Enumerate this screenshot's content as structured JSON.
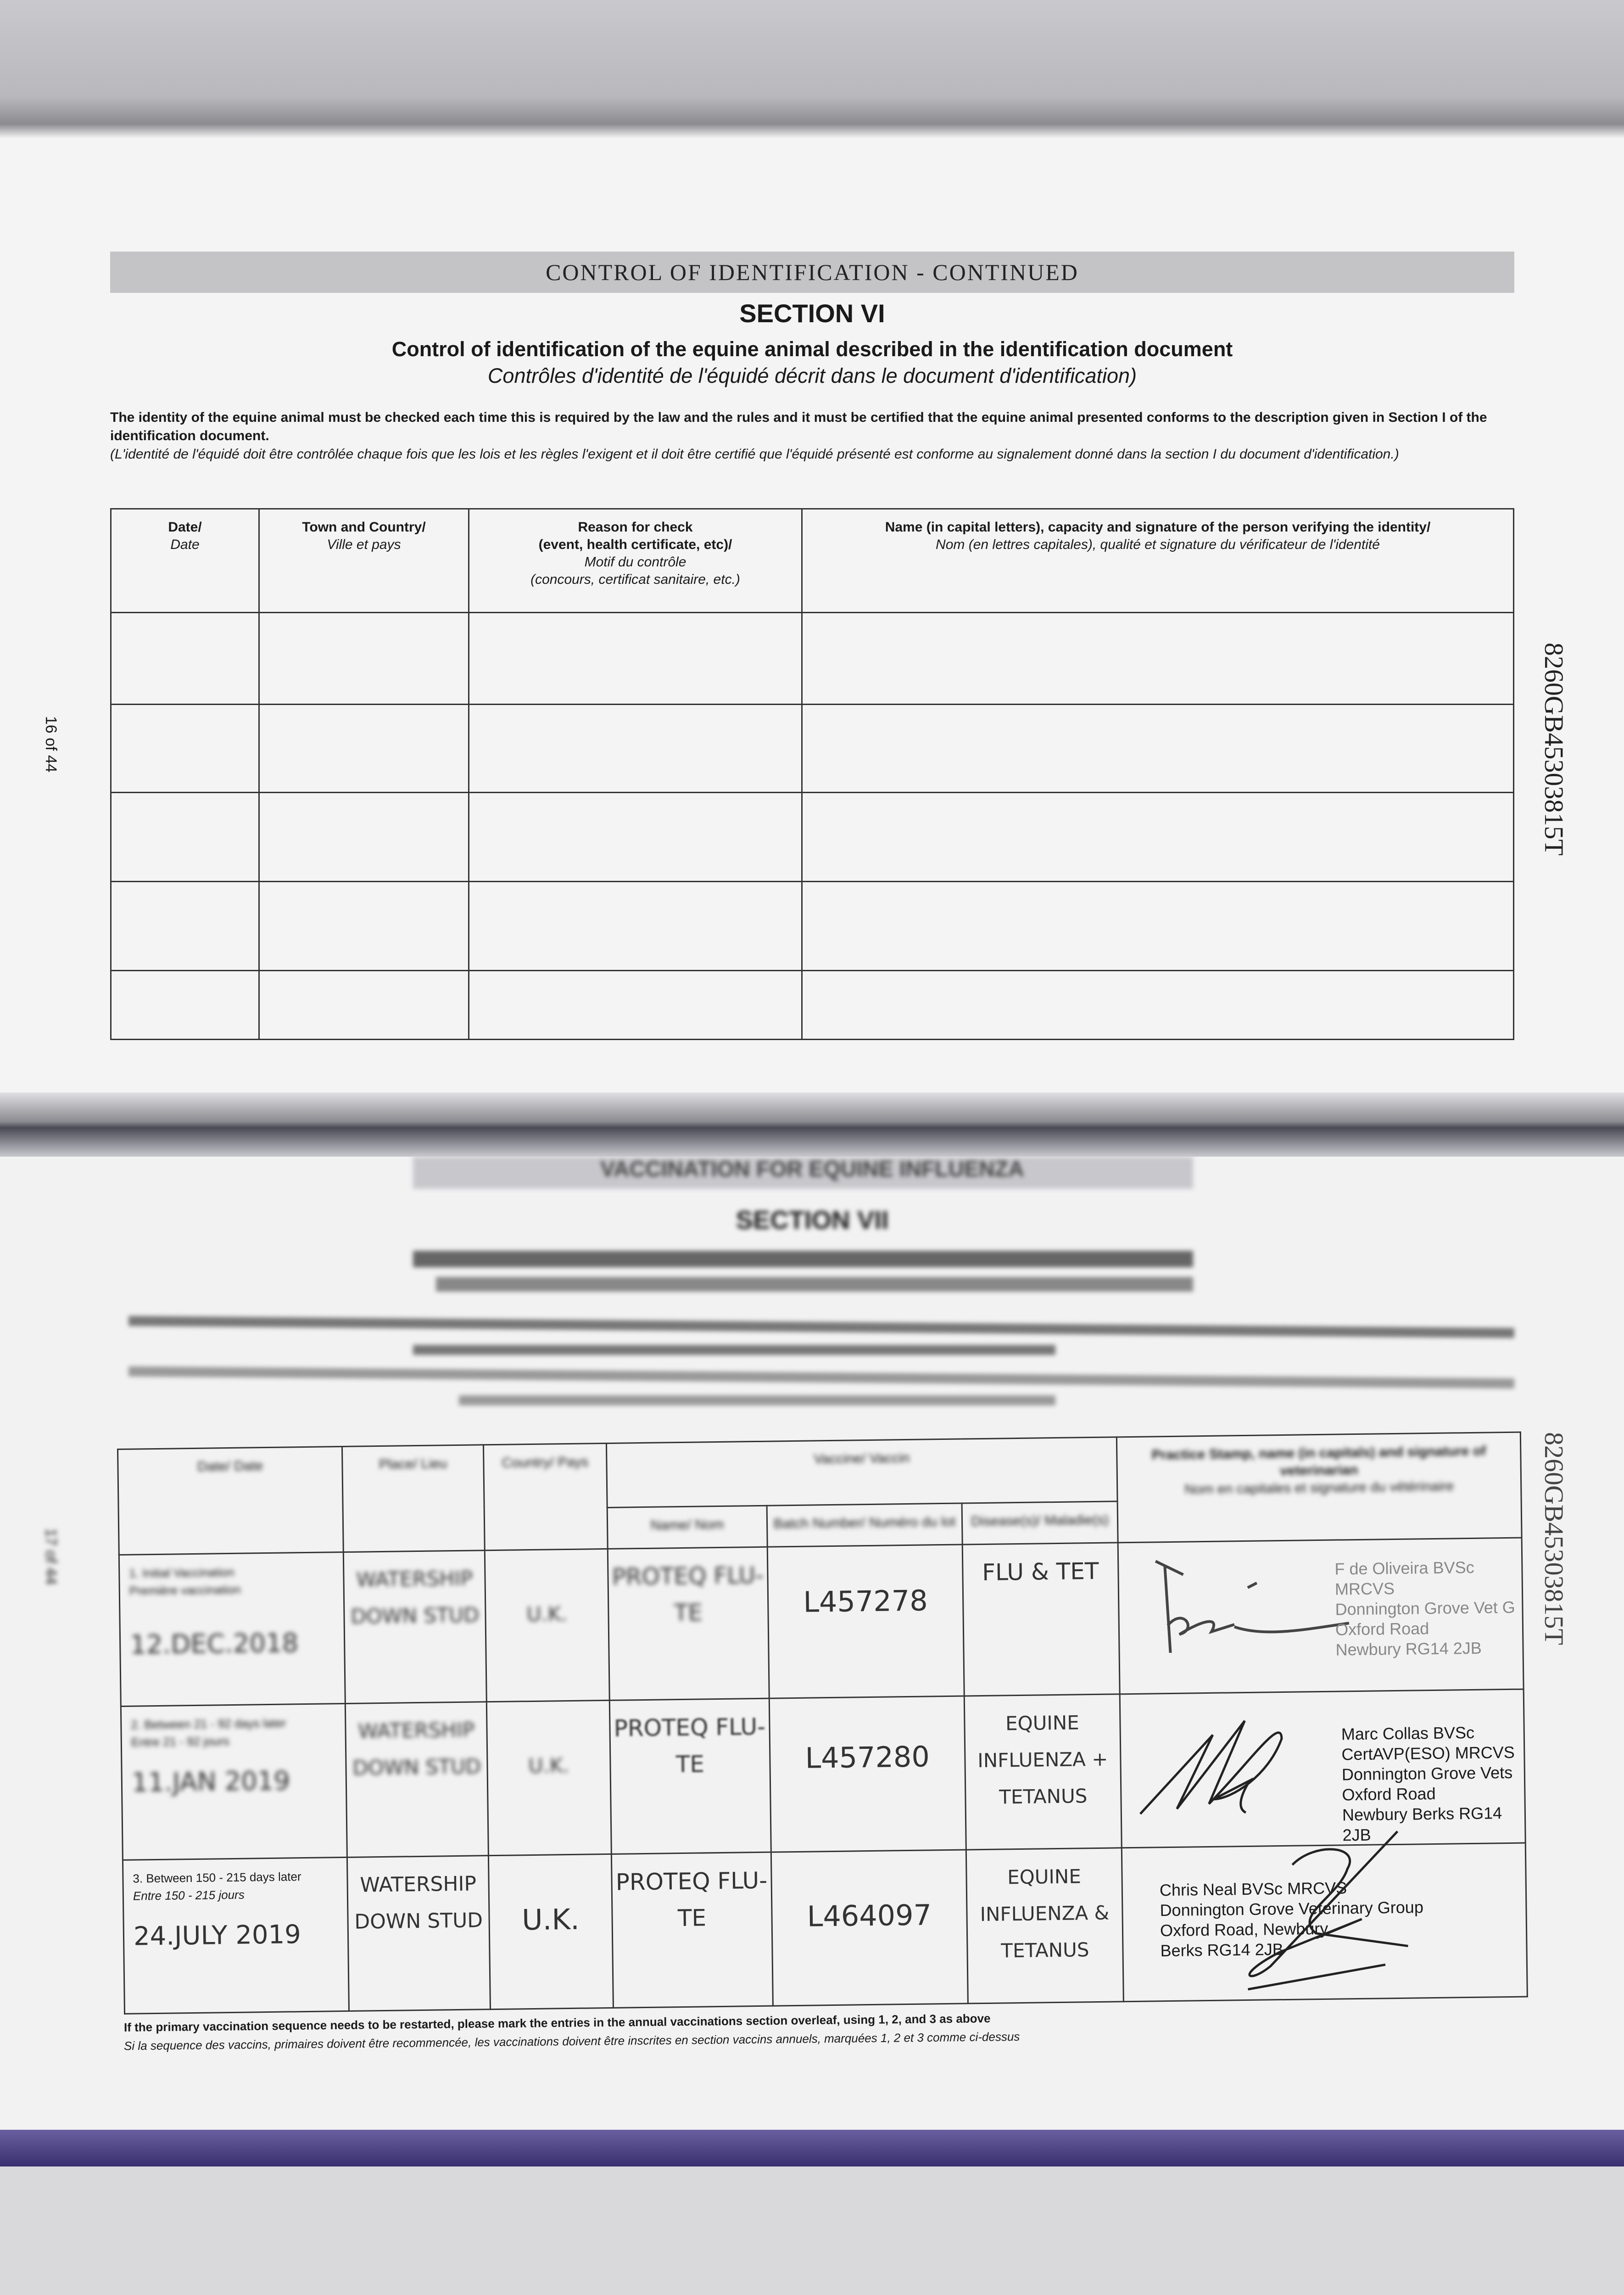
{
  "top_page": {
    "header_strip": "CONTROL OF IDENTIFICATION - CONTINUED",
    "section_title": "SECTION VI",
    "subtitle_en": "Control of identification of the equine animal described in the identification document",
    "subtitle_fr": "Contrôles d'identité de l'équidé décrit dans le document d'identification)",
    "intro_en": "The identity of the equine animal must be checked each time this is required by the law and the rules and it must be certified that the equine animal presented conforms to the description given in Section I of the identification document.",
    "intro_fr": "(L'identité de l'équidé doit être contrôlée chaque fois que les lois et les règles l'exigent et il doit être certifié que l'équidé présenté est conforme au signalement donné dans la section I du document d'identification.)",
    "page_number": "16 of 44",
    "serial": "8260GB45303815T",
    "columns": [
      {
        "en": "Date/",
        "fr": "Date"
      },
      {
        "en": "Town and Country/",
        "fr": "Ville et pays"
      },
      {
        "en": "Reason for check",
        "en2": "(event, health certificate, etc)/",
        "fr": "Motif du contrôle",
        "fr2": "(concours, certificat sanitaire, etc.)"
      },
      {
        "en": "Name (in capital letters), capacity and signature of the person verifying the identity/",
        "fr": "Nom (en lettres capitales), qualité et signature du vérificateur de l'identité"
      }
    ]
  },
  "bottom_page": {
    "header_strip": "VACCINATION FOR EQUINE INFLUENZA",
    "section_title": "SECTION VII",
    "page_number": "17 of 44",
    "serial": "8260GB45303815T",
    "columns": {
      "date": "Date/ Date",
      "place": "Place/ Lieu",
      "country": "Country/ Pays",
      "vaccine": "Vaccine/ Vaccin",
      "name": "Name/ Nom",
      "batch": "Batch Number/ Numéro du lot",
      "disease": "Disease(s)/ Maladie(s)",
      "vet": "Practice Stamp, name (in capitals) and signature of veterinarian",
      "vet_fr": "Nom en capitales et signature du vétérinaire"
    },
    "rows": [
      {
        "label": "1. Initial Vaccination",
        "label_fr": "Première vaccination",
        "date": "12.DEC.2018",
        "place": "WATERSHIP DOWN STUD",
        "country": "U.K.",
        "vaccine": "PROTEQ FLU-TE",
        "batch": "L457278",
        "disease": "FLU & TET",
        "vet_stamp": [
          "F de Oliveira BVSc MRCVS",
          "Donnington Grove Vet G",
          "Oxford Road",
          "Newbury RG14 2JB"
        ]
      },
      {
        "label": "2. Between 21 - 92 days later",
        "label_fr": "Entre 21 - 92 jours",
        "date": "11.JAN 2019",
        "place": "WATERSHIP DOWN STUD",
        "country": "U.K.",
        "vaccine": "PROTEQ FLU-TE",
        "batch": "L457280",
        "disease": "EQUINE INFLUENZA + TETANUS",
        "vet_stamp": [
          "Marc Collas BVSc CertAVP(ESO) MRCVS",
          "Donnington Grove Vets",
          "Oxford Road",
          "Newbury Berks RG14 2JB"
        ]
      },
      {
        "label": "3. Between 150 - 215 days later",
        "label_fr": "Entre 150 - 215 jours",
        "date": "24.JULY 2019",
        "place": "WATERSHIP DOWN STUD",
        "country": "U.K.",
        "vaccine": "PROTEQ FLU-TE",
        "batch": "L464097",
        "disease": "EQUINE INFLUENZA & TETANUS",
        "vet_stamp": [
          "Chris Neal BVSc MRCVS",
          "Donnington Grove Veterinary Group",
          "Oxford Road, Newbury",
          "Berks RG14 2JB"
        ]
      }
    ],
    "footer_en": "If the primary vaccination sequence needs to be restarted, please mark the entries in the annual vaccinations section overleaf, using 1, 2, and 3 as above",
    "footer_fr": "Si la sequence des vaccins, primaires doivent être recommencée, les vaccinations doivent être inscrites en section vaccins annuels, marquées 1, 2 et 3 comme ci-dessus"
  }
}
